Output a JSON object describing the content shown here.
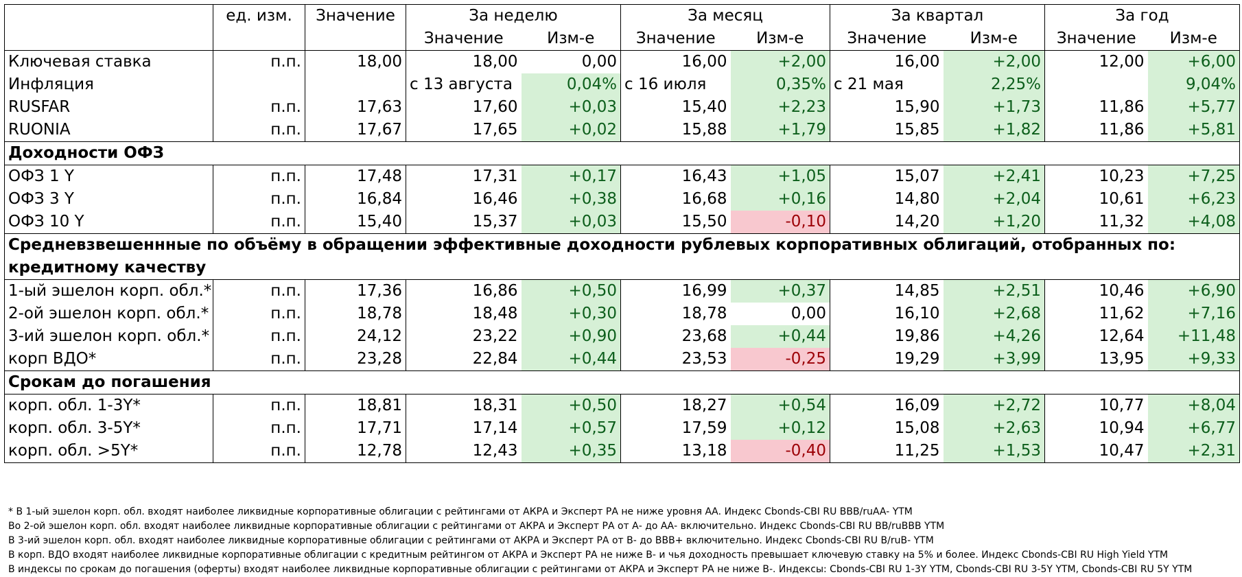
{
  "header": {
    "unit": "ед. изм.",
    "value": "Значение",
    "periods": [
      "За неделю",
      "За месяц",
      "За квартал",
      "За год"
    ],
    "sub_value": "Значение",
    "sub_change": "Изм-е"
  },
  "sections": [
    {
      "title": "",
      "rows": [
        {
          "name": "Ключевая ставка",
          "unit": "п.п.",
          "value": "18,00",
          "cells": [
            [
              "18,00",
              "0,00",
              "none"
            ],
            [
              "16,00",
              "+2,00",
              "pos"
            ],
            [
              "16,00",
              "+2,00",
              "pos"
            ],
            [
              "12,00",
              "+6,00",
              "pos"
            ]
          ]
        },
        {
          "name": "Инфляция",
          "unit": "",
          "value": "",
          "cells": [
            [
              "с 13 августа",
              "0,04%",
              "pos"
            ],
            [
              "с 16 июля",
              "0,35%",
              "pos"
            ],
            [
              "с 21 мая",
              "2,25%",
              "pos"
            ],
            [
              "",
              "9,04%",
              "pos"
            ]
          ]
        },
        {
          "name": "RUSFAR",
          "unit": "п.п.",
          "value": "17,63",
          "cells": [
            [
              "17,60",
              "+0,03",
              "pos"
            ],
            [
              "15,40",
              "+2,23",
              "pos"
            ],
            [
              "15,90",
              "+1,73",
              "pos"
            ],
            [
              "11,86",
              "+5,77",
              "pos"
            ]
          ]
        },
        {
          "name": "RUONIA",
          "unit": "п.п.",
          "value": "17,67",
          "cells": [
            [
              "17,65",
              "+0,02",
              "pos"
            ],
            [
              "15,88",
              "+1,79",
              "pos"
            ],
            [
              "15,85",
              "+1,82",
              "pos"
            ],
            [
              "11,86",
              "+5,81",
              "pos"
            ]
          ]
        }
      ]
    },
    {
      "title": "Доходности ОФЗ",
      "rows": [
        {
          "name": "ОФЗ 1 Y",
          "unit": "п.п.",
          "value": "17,48",
          "cells": [
            [
              "17,31",
              "+0,17",
              "pos"
            ],
            [
              "16,43",
              "+1,05",
              "pos"
            ],
            [
              "15,07",
              "+2,41",
              "pos"
            ],
            [
              "10,23",
              "+7,25",
              "pos"
            ]
          ]
        },
        {
          "name": "ОФЗ 3 Y",
          "unit": "п.п.",
          "value": "16,84",
          "cells": [
            [
              "16,46",
              "+0,38",
              "pos"
            ],
            [
              "16,68",
              "+0,16",
              "pos"
            ],
            [
              "14,80",
              "+2,04",
              "pos"
            ],
            [
              "10,61",
              "+6,23",
              "pos"
            ]
          ]
        },
        {
          "name": "ОФЗ 10 Y",
          "unit": "п.п.",
          "value": "15,40",
          "cells": [
            [
              "15,37",
              "+0,03",
              "pos"
            ],
            [
              "15,50",
              "-0,10",
              "neg"
            ],
            [
              "14,20",
              "+1,20",
              "pos"
            ],
            [
              "11,32",
              "+4,08",
              "pos"
            ]
          ]
        }
      ]
    },
    {
      "title": "Средневзвешеннные по объёму в обращении эффективные доходности рублевых корпоративных облигаций, отобранных по:",
      "subtitle": "кредитному качеству",
      "rows": [
        {
          "name": "1-ый эшелон корп. обл.*",
          "unit": "п.п.",
          "value": "17,36",
          "cells": [
            [
              "16,86",
              "+0,50",
              "pos"
            ],
            [
              "16,99",
              "+0,37",
              "pos"
            ],
            [
              "14,85",
              "+2,51",
              "pos"
            ],
            [
              "10,46",
              "+6,90",
              "pos"
            ]
          ]
        },
        {
          "name": "2-ой эшелон корп. обл.*",
          "unit": "п.п.",
          "value": "18,78",
          "cells": [
            [
              "18,48",
              "+0,30",
              "pos"
            ],
            [
              "18,78",
              "0,00",
              "none"
            ],
            [
              "16,10",
              "+2,68",
              "pos"
            ],
            [
              "11,62",
              "+7,16",
              "pos"
            ]
          ]
        },
        {
          "name": "3-ий эшелон корп. обл.*",
          "unit": "п.п.",
          "value": "24,12",
          "cells": [
            [
              "23,22",
              "+0,90",
              "pos"
            ],
            [
              "23,68",
              "+0,44",
              "pos"
            ],
            [
              "19,86",
              "+4,26",
              "pos"
            ],
            [
              "12,64",
              "+11,48",
              "pos"
            ]
          ]
        },
        {
          "name": "корп ВДО*",
          "unit": "п.п.",
          "value": "23,28",
          "cells": [
            [
              "22,84",
              "+0,44",
              "pos"
            ],
            [
              "23,53",
              "-0,25",
              "neg"
            ],
            [
              "19,29",
              "+3,99",
              "pos"
            ],
            [
              "13,95",
              "+9,33",
              "pos"
            ]
          ]
        }
      ]
    },
    {
      "title": "Срокам до погашения",
      "rows": [
        {
          "name": "корп. обл. 1-3Y*",
          "unit": "п.п.",
          "value": "18,81",
          "cells": [
            [
              "18,31",
              "+0,50",
              "pos"
            ],
            [
              "18,27",
              "+0,54",
              "pos"
            ],
            [
              "16,09",
              "+2,72",
              "pos"
            ],
            [
              "10,77",
              "+8,04",
              "pos"
            ]
          ]
        },
        {
          "name": "корп. обл. 3-5Y*",
          "unit": "п.п.",
          "value": "17,71",
          "cells": [
            [
              "17,14",
              "+0,57",
              "pos"
            ],
            [
              "17,59",
              "+0,12",
              "pos"
            ],
            [
              "15,08",
              "+2,63",
              "pos"
            ],
            [
              "10,94",
              "+6,77",
              "pos"
            ]
          ]
        },
        {
          "name": "корп. обл. >5Y*",
          "unit": "п.п.",
          "value": "12,78",
          "cells": [
            [
              "12,43",
              "+0,35",
              "pos"
            ],
            [
              "13,18",
              "-0,40",
              "neg"
            ],
            [
              "11,25",
              "+1,53",
              "pos"
            ],
            [
              "10,47",
              "+2,31",
              "pos"
            ]
          ]
        }
      ]
    }
  ],
  "notes": [
    "* В 1-ый эшелон корп. обл. входят наиболее ликвидные корпоративные облигации с рейтингами от АКРА и Эксперт РА не ниже уровня АА. Индекс Cbonds-CBI RU BBB/ruAA- YTM",
    "Во 2-ой эшелон корп. обл. входят наиболее ликвидные корпоративные облигации с рейтингами от АКРА и Эксперт РА от А- до АА- включительно.  Индекс Cbonds-CBI RU BB/ruBBB YTM",
    "В 3-ий эшелон корп. обл. входят наиболее ликвидные корпоративные облигации с рейтингами от АКРА и Эксперт РА от В- до ВВВ+ включительно.  Индекс Cbonds-CBI RU B/ruB- YTM",
    "В корп. ВДО входят наиболее ликвидные корпоративные облигации с кредитным рейтингом от АКРА и Эксперт РА не ниже В- и чья доходность превышает ключевую ставку на 5% и более. Индекс  Cbonds-CBI RU High Yield YTM",
    "В индексы по срокам до погашения (оферты) входят наиболее ликвидные корпоративные облигации с рейтингами от АКРА и Эксперт РА не ниже В-. Индексы:  Cbonds-CBI RU 1-3Y YTM, Cbonds-CBI RU 3-5Y YTM, Cbonds-CBI RU 5Y YTM"
  ]
}
